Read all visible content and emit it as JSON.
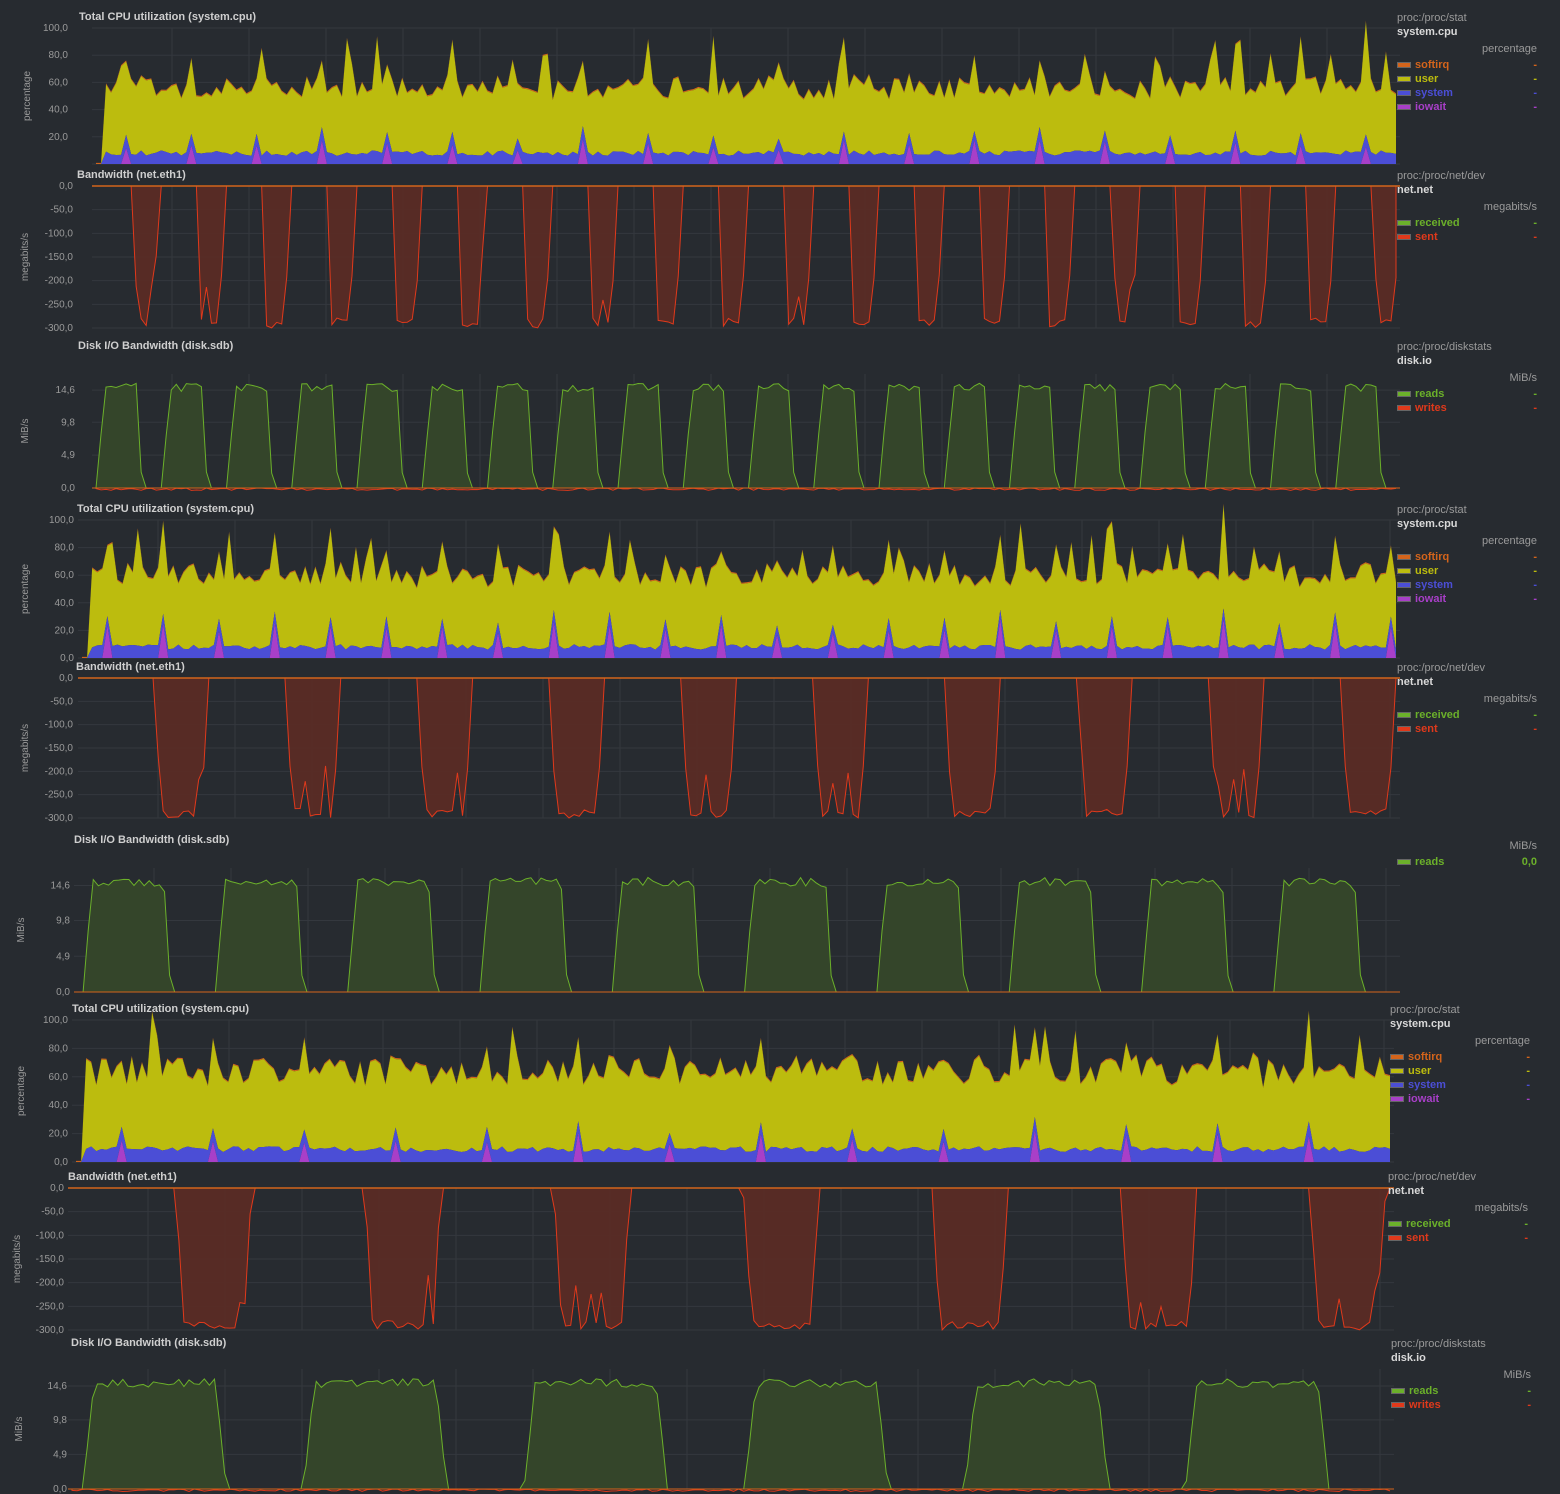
{
  "colors": {
    "background": "#272b30",
    "grid": "#34383e",
    "axis_text": "#9a9a9a",
    "title_text": "#cfcfcf",
    "softirq": "#d4641b",
    "user": "#bcbc0e",
    "system": "#4b4ed6",
    "iowait": "#a83fc8",
    "received": "#6bb02a",
    "sent": "#e0391b",
    "reads": "#6bb02a",
    "writes": "#e0391b"
  },
  "sections": [
    {
      "cpu": {
        "title": "Total CPU utilization (system.cpu)",
        "source": "proc:/proc/stat",
        "context": "system.cpu",
        "units": "percentage",
        "dims": [
          {
            "name": "softirq",
            "value": "-"
          },
          {
            "name": "user",
            "value": "-"
          },
          {
            "name": "system",
            "value": "-"
          },
          {
            "name": "iowait",
            "value": "-"
          }
        ],
        "yticks": [
          "100,0",
          "80,0",
          "60,0",
          "40,0",
          "20,0",
          ""
        ]
      },
      "net": {
        "title": "Bandwidth (net.eth1)",
        "source": "proc:/proc/net/dev",
        "context": "net.net",
        "units": "megabits/s",
        "dims": [
          {
            "name": "received",
            "value": "-"
          },
          {
            "name": "sent",
            "value": "-"
          }
        ],
        "yticks": [
          "0,0",
          "-50,0",
          "-100,0",
          "-150,0",
          "-200,0",
          "-250,0",
          "-300,0"
        ]
      },
      "disk": {
        "title": "Disk I/O Bandwidth (disk.sdb)",
        "source": "proc:/proc/diskstats",
        "context": "disk.io",
        "units": "MiB/s",
        "dims": [
          {
            "name": "reads",
            "value": "-"
          },
          {
            "name": "writes",
            "value": "-"
          }
        ],
        "yticks": [
          "14,6",
          "9,8",
          "4,9",
          "0,0"
        ]
      }
    },
    {
      "cpu": {
        "title": "Total CPU utilization (system.cpu)",
        "source": "proc:/proc/stat",
        "context": "system.cpu",
        "units": "percentage",
        "dims": [
          {
            "name": "softirq",
            "value": "-"
          },
          {
            "name": "user",
            "value": "-"
          },
          {
            "name": "system",
            "value": "-"
          },
          {
            "name": "iowait",
            "value": "-"
          }
        ],
        "yticks": [
          "100,0",
          "80,0",
          "60,0",
          "40,0",
          "20,0",
          "0,0"
        ]
      },
      "net": {
        "title": "Bandwidth (net.eth1)",
        "source": "proc:/proc/net/dev",
        "context": "net.net",
        "units": "megabits/s",
        "dims": [
          {
            "name": "received",
            "value": "-"
          },
          {
            "name": "sent",
            "value": "-"
          }
        ],
        "yticks": [
          "0,0",
          "-50,0",
          "-100,0",
          "-150,0",
          "-200,0",
          "-250,0",
          "-300,0"
        ]
      },
      "disk": {
        "title": "Disk I/O Bandwidth (disk.sdb)",
        "source": "",
        "context": "",
        "units": "MiB/s",
        "dims": [
          {
            "name": "reads",
            "value": "0,0"
          }
        ],
        "yticks": [
          "14,6",
          "9,8",
          "4,9",
          "0,0"
        ]
      }
    },
    {
      "cpu": {
        "title": "Total CPU utilization (system.cpu)",
        "source": "proc:/proc/stat",
        "context": "system.cpu",
        "units": "percentage",
        "dims": [
          {
            "name": "softirq",
            "value": "-"
          },
          {
            "name": "user",
            "value": "-"
          },
          {
            "name": "system",
            "value": "-"
          },
          {
            "name": "iowait",
            "value": "-"
          }
        ],
        "yticks": [
          "100,0",
          "80,0",
          "60,0",
          "40,0",
          "20,0",
          "0,0"
        ]
      },
      "net": {
        "title": "Bandwidth (net.eth1)",
        "source": "proc:/proc/net/dev",
        "context": "net.net",
        "units": "megabits/s",
        "dims": [
          {
            "name": "received",
            "value": "-"
          },
          {
            "name": "sent",
            "value": "-"
          }
        ],
        "yticks": [
          "0,0",
          "-50,0",
          "-100,0",
          "-150,0",
          "-200,0",
          "-250,0",
          "-300,0"
        ]
      },
      "disk": {
        "title": "Disk I/O Bandwidth (disk.sdb)",
        "source": "proc:/proc/diskstats",
        "context": "disk.io",
        "units": "MiB/s",
        "dims": [
          {
            "name": "reads",
            "value": "-"
          },
          {
            "name": "writes",
            "value": "-"
          }
        ],
        "yticks": [
          "14,6",
          "9,8",
          "4,9",
          "0,0"
        ]
      }
    }
  ],
  "chart_data": [
    {
      "type": "area",
      "title": "Total CPU utilization (system.cpu)",
      "ylabel": "percentage",
      "ylim": [
        0,
        100
      ],
      "series": [
        {
          "name": "softirq"
        },
        {
          "name": "user"
        },
        {
          "name": "system"
        },
        {
          "name": "iowait"
        }
      ],
      "pattern": {
        "user_base": 48,
        "user_noise": 8,
        "system_base": 6,
        "iowait_spikes": 20,
        "iowait_peak": 14,
        "peaks": 22
      }
    },
    {
      "type": "area",
      "title": "Bandwidth (net.eth1)",
      "ylabel": "megabits/s",
      "ylim": [
        -300,
        0
      ],
      "series": [
        {
          "name": "received"
        },
        {
          "name": "sent"
        }
      ],
      "pattern": {
        "sent_min": -300,
        "bursts": 20
      }
    },
    {
      "type": "area",
      "title": "Disk I/O Bandwidth (disk.sdb)",
      "ylabel": "MiB/s",
      "ylim": [
        0,
        17
      ],
      "series": [
        {
          "name": "reads"
        },
        {
          "name": "writes"
        }
      ],
      "pattern": {
        "reads_plateau": 15.3,
        "bursts": 20
      }
    },
    {
      "type": "area",
      "title": "Total CPU utilization (system.cpu)",
      "ylabel": "percentage",
      "ylim": [
        0,
        100
      ],
      "series": [
        {
          "name": "softirq"
        },
        {
          "name": "user"
        },
        {
          "name": "system"
        },
        {
          "name": "iowait"
        }
      ],
      "pattern": {
        "user_base": 52,
        "user_noise": 8,
        "system_base": 6,
        "iowait_spikes": 22,
        "iowait_peak": 22,
        "peaks": 22
      }
    },
    {
      "type": "area",
      "title": "Bandwidth (net.eth1)",
      "ylabel": "megabits/s",
      "ylim": [
        -300,
        0
      ],
      "series": [
        {
          "name": "received"
        },
        {
          "name": "sent"
        }
      ],
      "pattern": {
        "sent_min": -300,
        "bursts": 10
      }
    },
    {
      "type": "area",
      "title": "Disk I/O Bandwidth (disk.sdb)",
      "ylabel": "MiB/s",
      "ylim": [
        0,
        17
      ],
      "series": [
        {
          "name": "reads"
        }
      ],
      "pattern": {
        "reads_plateau": 15.4,
        "bursts": 10
      }
    },
    {
      "type": "area",
      "title": "Total CPU utilization (system.cpu)",
      "ylabel": "percentage",
      "ylim": [
        0,
        100
      ],
      "series": [
        {
          "name": "softirq"
        },
        {
          "name": "user"
        },
        {
          "name": "system"
        },
        {
          "name": "iowait"
        }
      ],
      "pattern": {
        "user_base": 55,
        "user_noise": 10,
        "system_base": 7,
        "iowait_spikes": 14,
        "iowait_peak": 18,
        "peaks": 12
      }
    },
    {
      "type": "area",
      "title": "Bandwidth (net.eth1)",
      "ylabel": "megabits/s",
      "ylim": [
        -300,
        0
      ],
      "series": [
        {
          "name": "received"
        },
        {
          "name": "sent"
        }
      ],
      "pattern": {
        "sent_min": -300,
        "bursts": 7
      }
    },
    {
      "type": "area",
      "title": "Disk I/O Bandwidth (disk.sdb)",
      "ylabel": "MiB/s",
      "ylim": [
        0,
        17
      ],
      "series": [
        {
          "name": "reads"
        },
        {
          "name": "writes"
        }
      ],
      "pattern": {
        "reads_plateau": 15.3,
        "bursts": 6
      }
    }
  ]
}
